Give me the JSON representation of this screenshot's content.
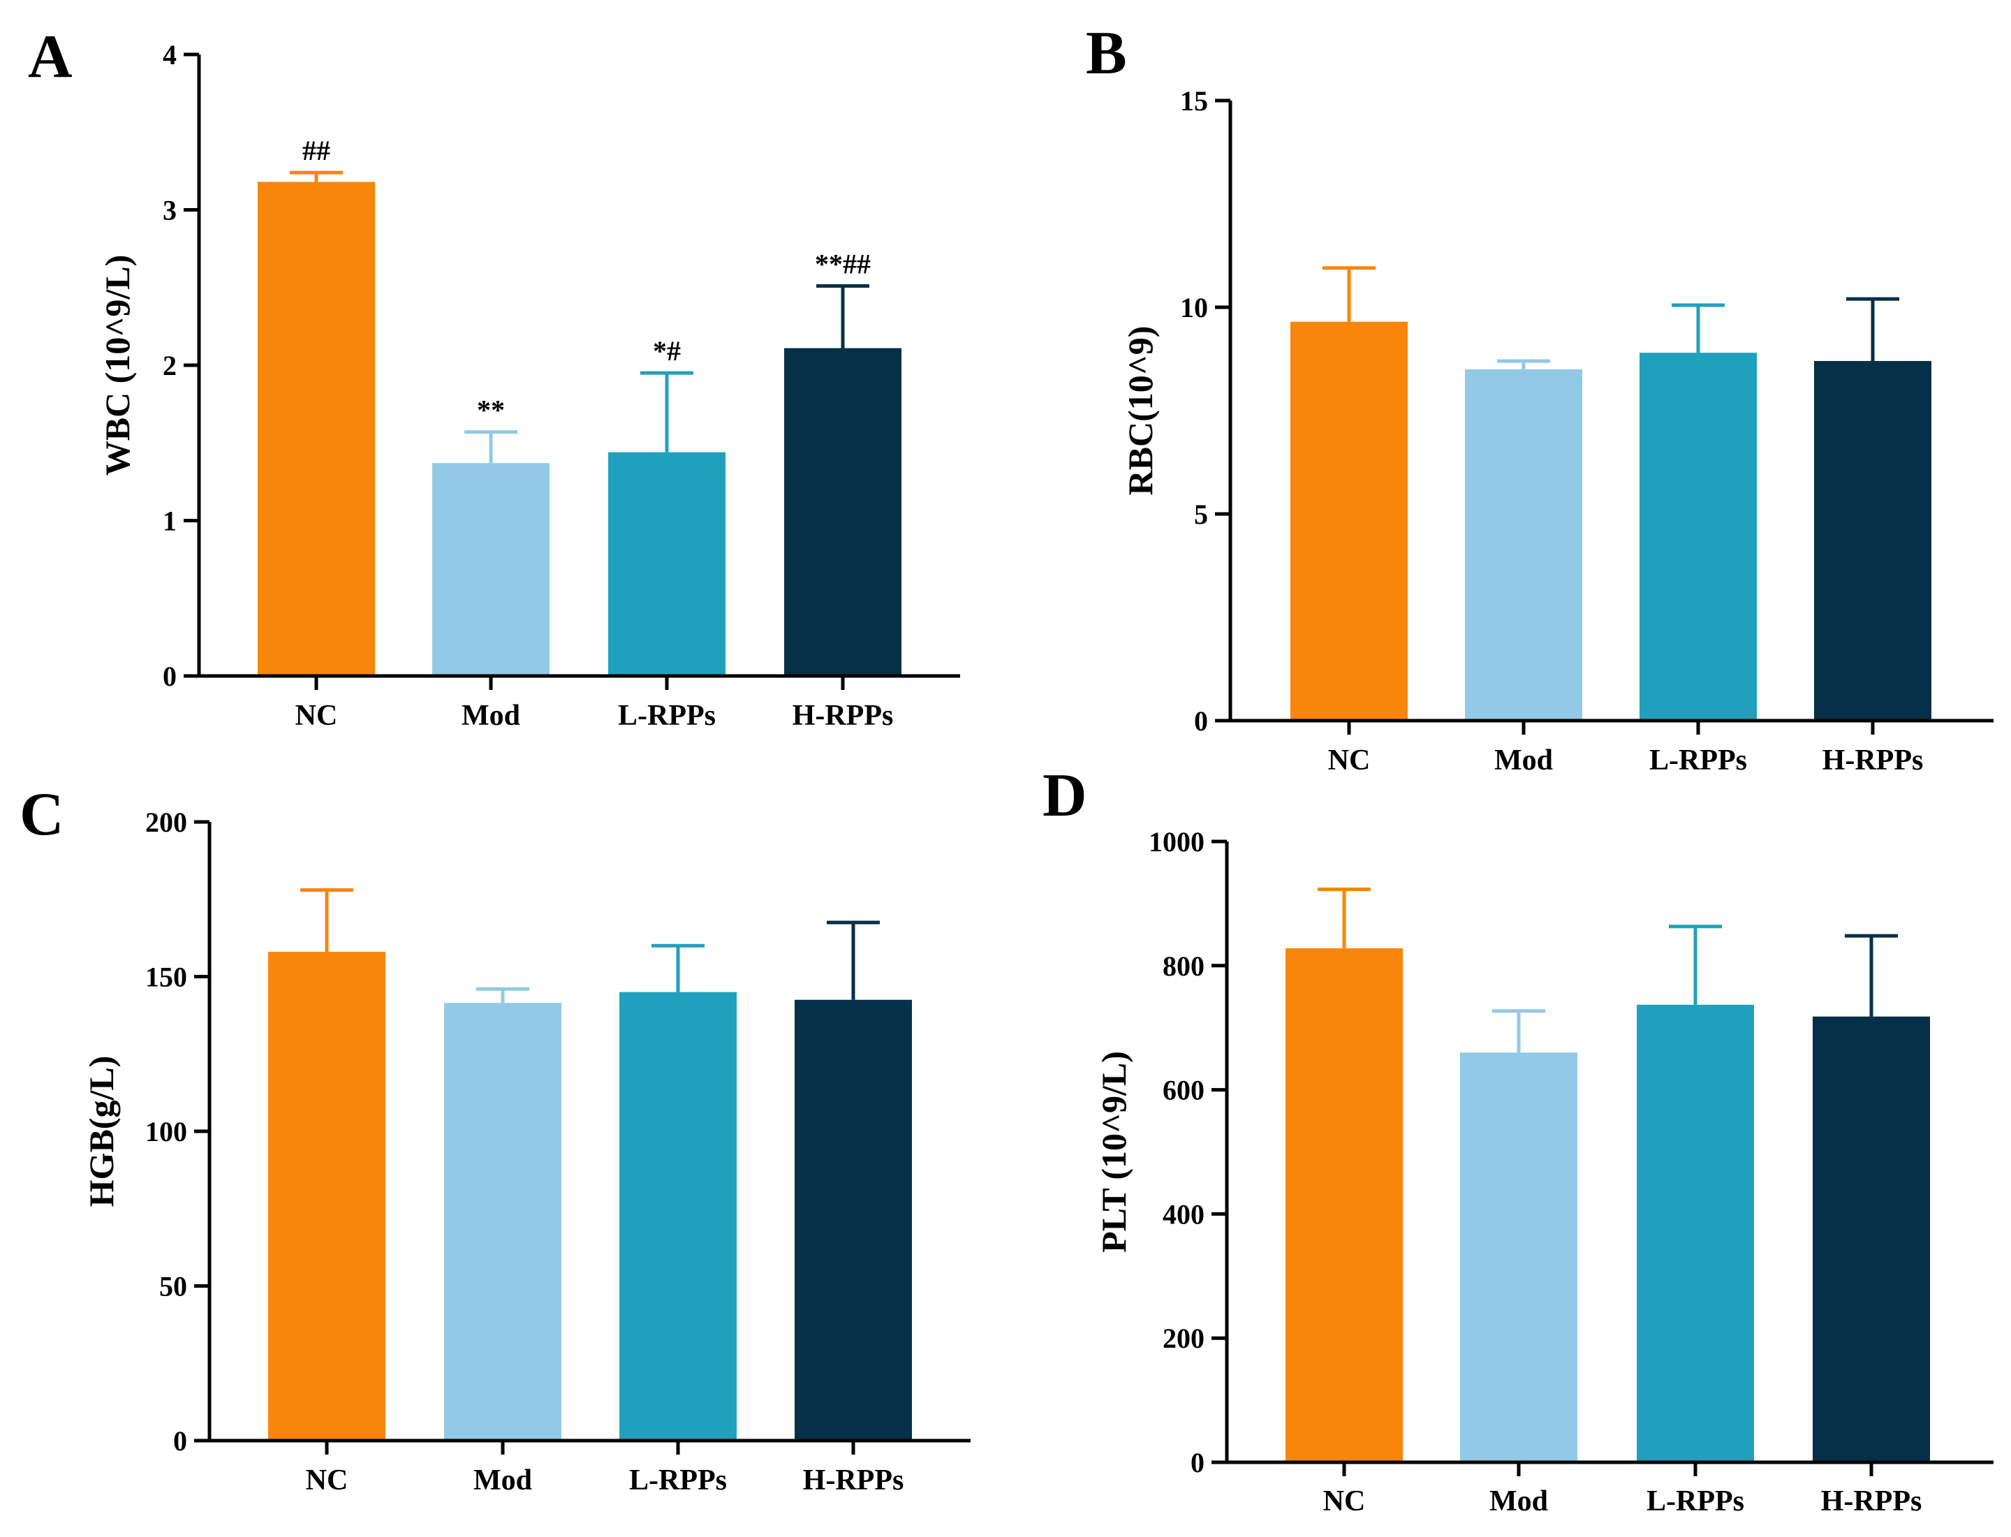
{
  "figure": {
    "colors": {
      "NC": "#F8860A",
      "Mod": "#92C9E6",
      "L-RPPs": "#21A0BD",
      "H-RPPs": "#053047"
    }
  },
  "chart_data": [
    {
      "panel": "A",
      "type": "bar",
      "categories": [
        "NC",
        "Mod",
        "L-RPPs",
        "H-RPPs"
      ],
      "values": [
        3.18,
        1.37,
        1.44,
        2.11
      ],
      "errors": [
        0.06,
        0.2,
        0.51,
        0.4
      ],
      "significance": [
        "##",
        "**",
        "*#",
        "**##"
      ],
      "ylabel": "WBC (10^9/L)",
      "xlabel": "",
      "ylim": [
        0,
        4
      ],
      "yticks": [
        0,
        1,
        2,
        3,
        4
      ]
    },
    {
      "panel": "B",
      "type": "bar",
      "categories": [
        "NC",
        "Mod",
        "L-RPPs",
        "H-RPPs"
      ],
      "values": [
        9.65,
        8.5,
        8.9,
        8.7
      ],
      "errors": [
        1.3,
        0.2,
        1.15,
        1.5
      ],
      "significance": [
        "",
        "",
        "",
        ""
      ],
      "ylabel": "RBC(10^9)",
      "xlabel": "",
      "ylim": [
        0,
        15
      ],
      "yticks": [
        0,
        5,
        10,
        15
      ]
    },
    {
      "panel": "C",
      "type": "bar",
      "categories": [
        "NC",
        "Mod",
        "L-RPPs",
        "H-RPPs"
      ],
      "values": [
        158,
        141.5,
        145,
        142.5
      ],
      "errors": [
        20,
        4.5,
        15,
        25
      ],
      "significance": [
        "",
        "",
        "",
        ""
      ],
      "ylabel": "HGB(g/L)",
      "xlabel": "",
      "ylim": [
        0,
        200
      ],
      "yticks": [
        0,
        50,
        100,
        150,
        200
      ]
    },
    {
      "panel": "D",
      "type": "bar",
      "categories": [
        "NC",
        "Mod",
        "L-RPPs",
        "H-RPPs"
      ],
      "values": [
        828,
        660,
        737,
        718
      ],
      "errors": [
        95,
        67,
        126,
        130
      ],
      "significance": [
        "",
        "",
        "",
        ""
      ],
      "ylabel": "PLT (10^9/L)",
      "xlabel": "",
      "ylim": [
        0,
        1000
      ],
      "yticks": [
        0,
        200,
        400,
        600,
        800,
        1000
      ]
    }
  ]
}
